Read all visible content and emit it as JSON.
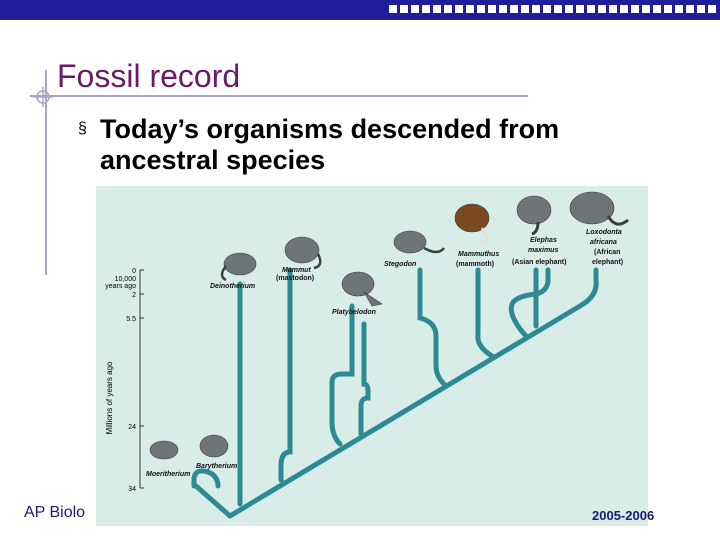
{
  "slide": {
    "title": "Fossil record",
    "bullet_text": "Today’s organisms descended from ancestral species",
    "footer_left": "AP Biolo",
    "footer_right": "2005-2006"
  },
  "figure": {
    "axis_label": "Millions of years ago",
    "tick_top_label": "0",
    "tick_top_sublabel_1": "10,000",
    "tick_top_sublabel_2": "years ago",
    "ticks": [
      "2",
      "5.5",
      "24",
      "34"
    ],
    "taxa": {
      "deinotherium": "Deinotherium",
      "mammut_1": "Mammut",
      "mammut_2": "(mastodon)",
      "platybelodon": "Platybelodon",
      "stegodon": "Stegodon",
      "mammuthus_1": "Mammuthus",
      "mammuthus_2": "(mammoth)",
      "elephas_1": "Elephas",
      "elephas_2": "maximus",
      "elephas_3": "(Asian elephant)",
      "loxodonta_1": "Loxodonta",
      "loxodonta_2": "africana",
      "loxodonta_3": "(African",
      "loxodonta_4": "elephant)",
      "barytherium": "Barytherium",
      "moeritherium": "Moeritherium"
    },
    "colors": {
      "branch": "#2e8a92",
      "background": "#d8ece8",
      "title": "#6a1a66",
      "topbar": "#1f1d9a"
    }
  }
}
